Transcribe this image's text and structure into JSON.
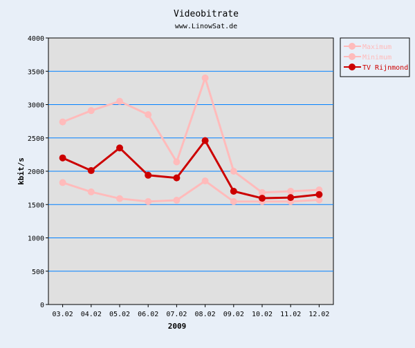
{
  "chart_data": {
    "type": "line",
    "title": "Videobitrate",
    "subtitle": "www.LinowSat.de",
    "xlabel": "2009",
    "ylabel": "kbit/s",
    "ylim": [
      0,
      4000
    ],
    "yticks": [
      0,
      500,
      1000,
      1500,
      2000,
      2500,
      3000,
      3500,
      4000
    ],
    "grid": true,
    "legend_position": "right",
    "categories": [
      "03.02",
      "04.02",
      "05.02",
      "06.02",
      "07.02",
      "08.02",
      "09.02",
      "10.02",
      "11.02",
      "12.02"
    ],
    "series": [
      {
        "name": "Maximum",
        "color": "#ffbbbb",
        "values": [
          2740,
          2910,
          3050,
          2850,
          2140,
          3400,
          2000,
          1680,
          1700,
          1720
        ]
      },
      {
        "name": "Minimum",
        "color": "#ffbbbb",
        "values": [
          1830,
          1690,
          1590,
          1545,
          1565,
          1855,
          1545,
          1545,
          1545,
          1570
        ]
      },
      {
        "name": "TV Rijnmond",
        "color": "#cc0000",
        "values": [
          2200,
          2010,
          2350,
          1940,
          1900,
          2460,
          1700,
          1595,
          1605,
          1650
        ]
      }
    ]
  }
}
